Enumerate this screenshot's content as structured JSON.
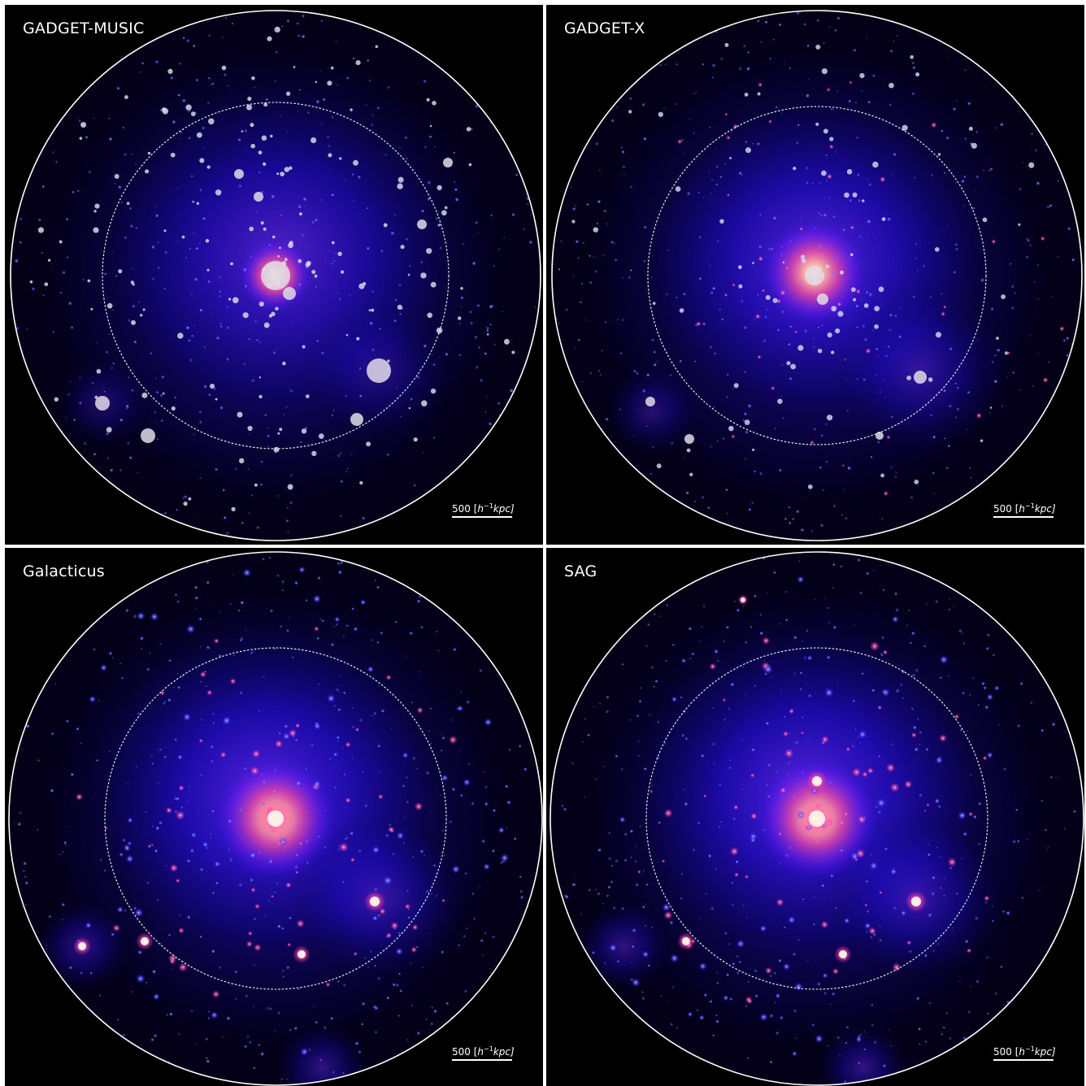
{
  "figure": {
    "description_colors": {
      "background": "#000000",
      "halo_core": "#ffd0a0",
      "halo_mid": "#ff4fa0",
      "halo_outer": "#2a10ff",
      "subhalo_dot": "#d8d8e8",
      "circle_line": "#ffffff"
    }
  },
  "panels": [
    {
      "id": "gadget-music",
      "title": "GADGET-MUSIC",
      "scale_value": "500",
      "scale_unit_prefix": "[",
      "scale_h": "h",
      "scale_exp": "−1",
      "scale_kpc": "kpc]",
      "style": "dots"
    },
    {
      "id": "gadget-x",
      "title": "GADGET-X",
      "scale_value": "500",
      "scale_unit_prefix": "[",
      "scale_h": "h",
      "scale_exp": "−1",
      "scale_kpc": "kpc]",
      "style": "mixed"
    },
    {
      "id": "galacticus",
      "title": "Galacticus",
      "scale_value": "500",
      "scale_unit_prefix": "[",
      "scale_h": "h",
      "scale_exp": "−1",
      "scale_kpc": "kpc]",
      "style": "glow"
    },
    {
      "id": "sag",
      "title": "SAG",
      "scale_value": "500",
      "scale_unit_prefix": "[",
      "scale_h": "h",
      "scale_exp": "−1",
      "scale_kpc": "kpc]",
      "style": "glow"
    }
  ]
}
